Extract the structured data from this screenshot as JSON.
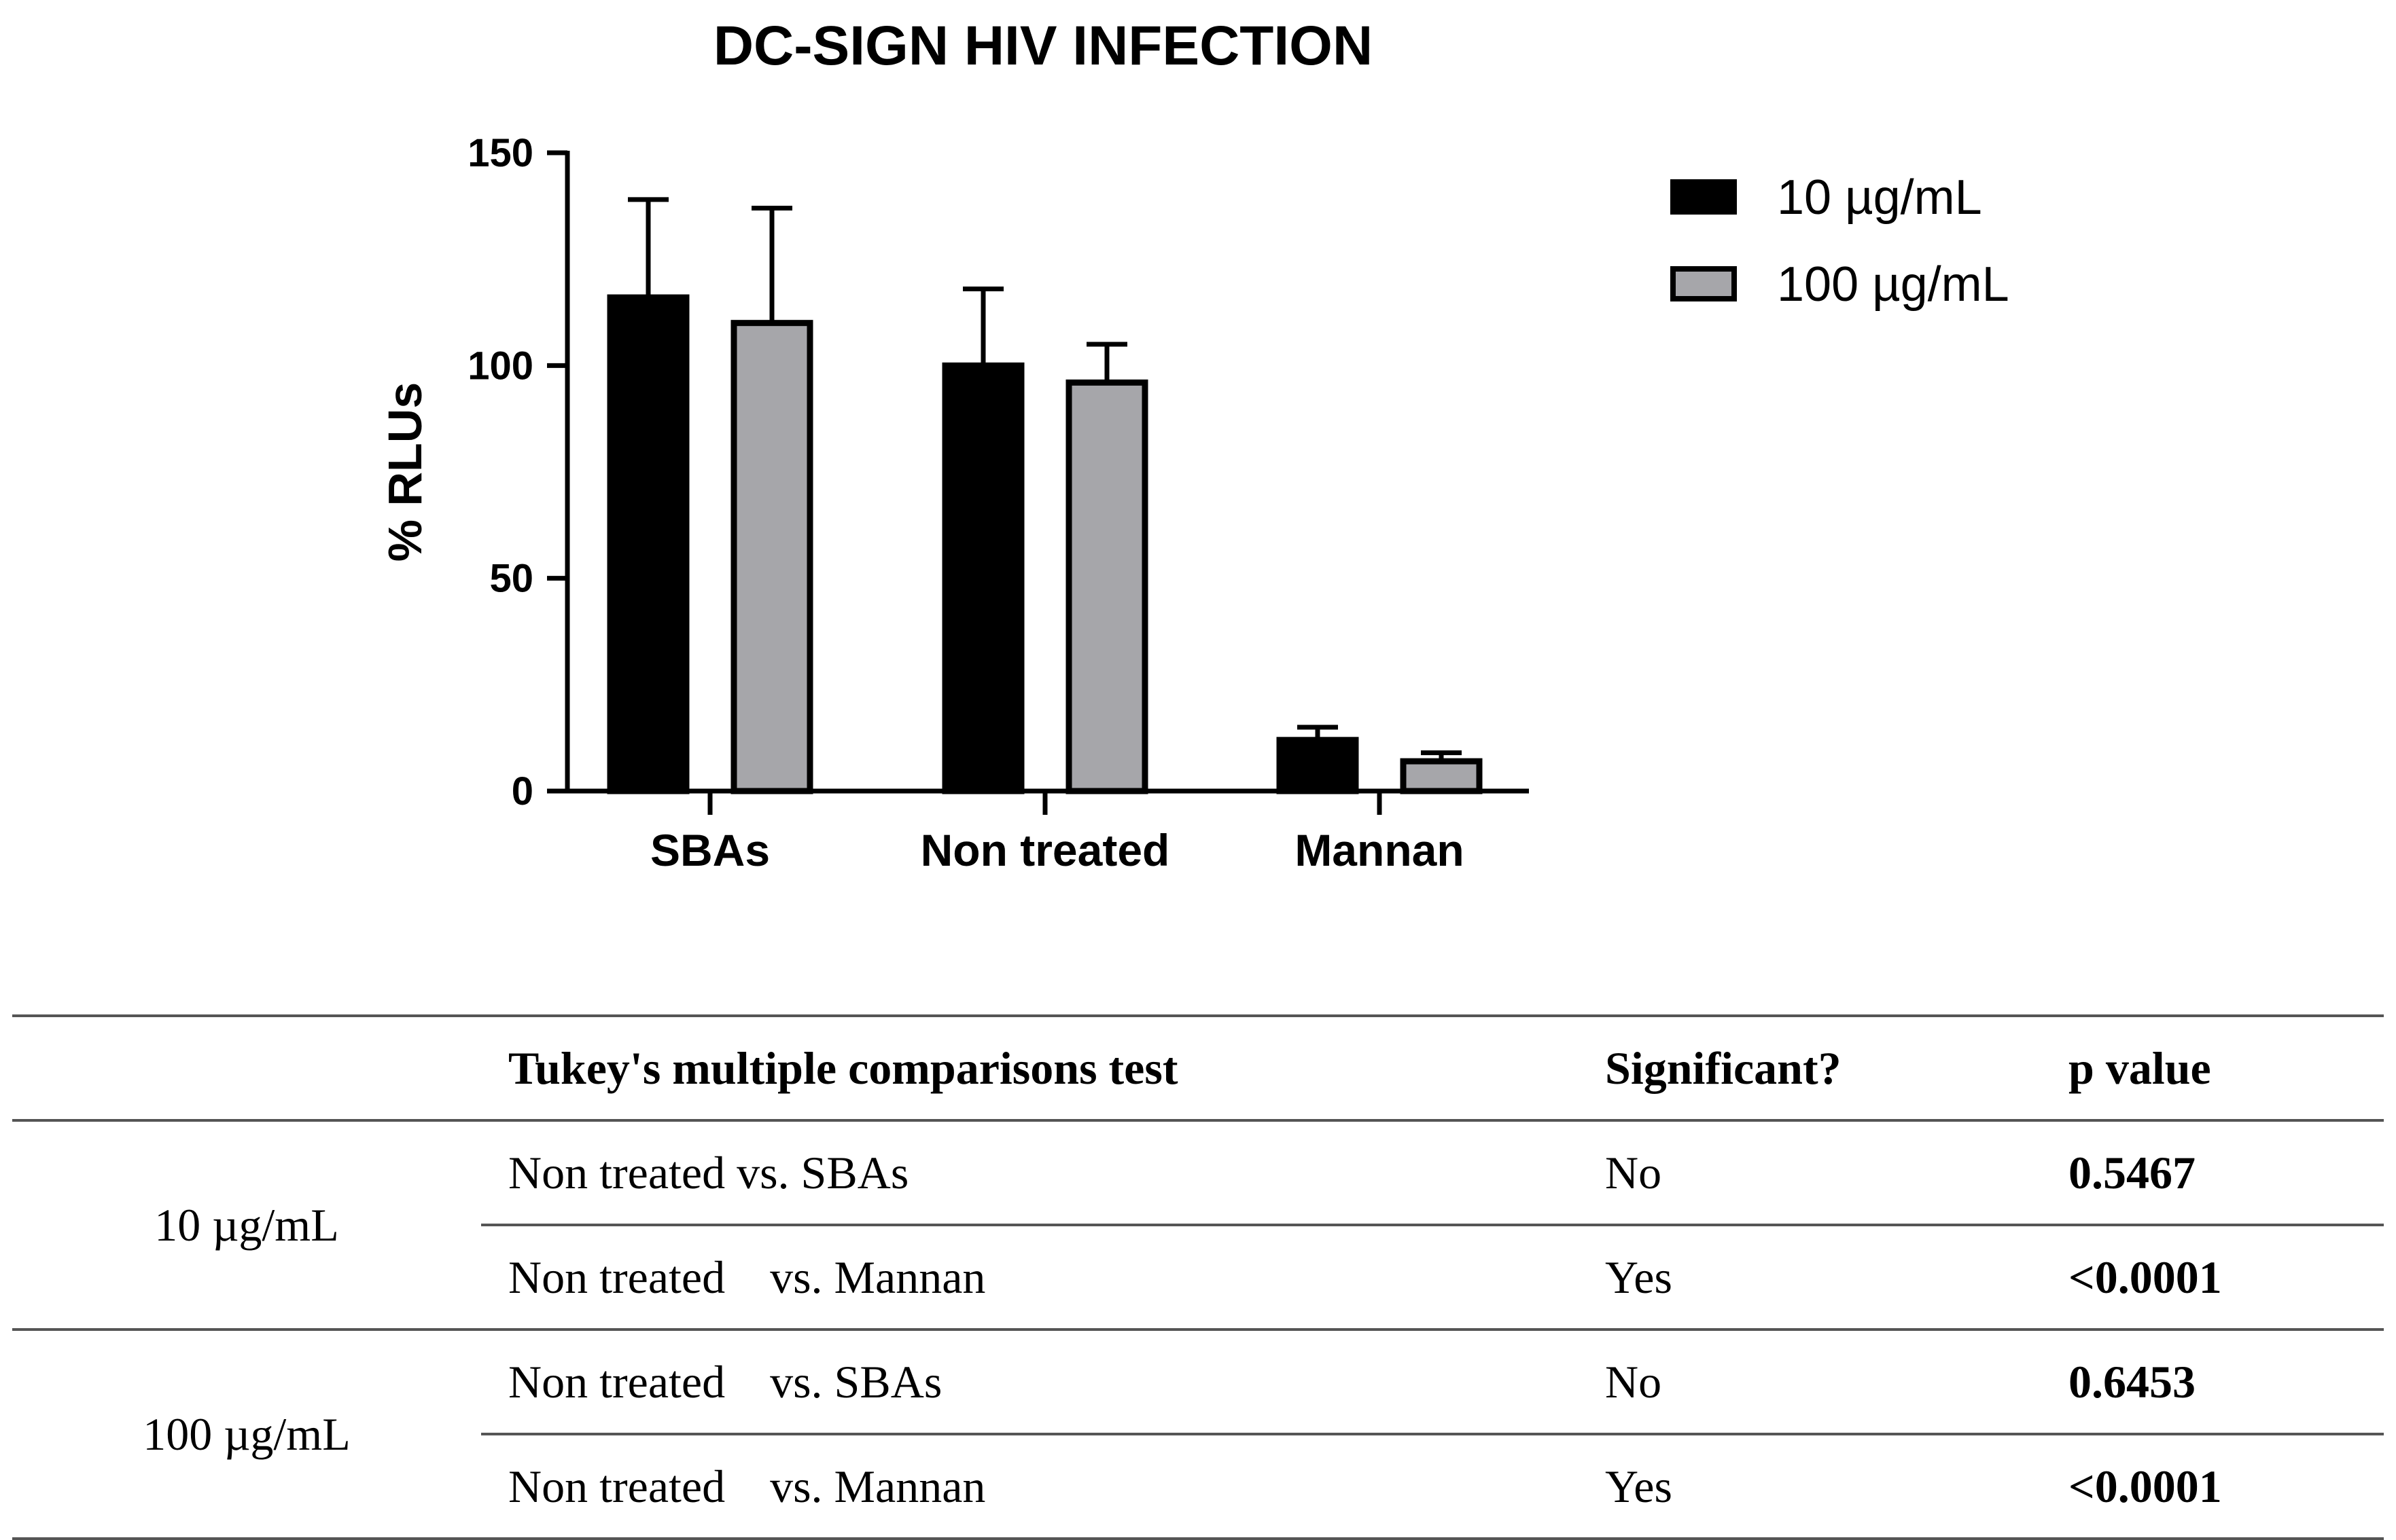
{
  "chart_data": {
    "type": "bar",
    "title": "DC-SIGN HIV INFECTION",
    "xlabel": "",
    "ylabel": "% RLUs",
    "ylim": [
      0,
      150
    ],
    "yticks": [
      0,
      50,
      100,
      150
    ],
    "categories": [
      "SBAs",
      "Non treated",
      "Mannan"
    ],
    "series": [
      {
        "name": "10 µg/mL",
        "color": "#000000",
        "values": [
          116,
          100,
          12
        ],
        "errors": [
          23,
          18,
          3
        ]
      },
      {
        "name": "100 µg/mL",
        "color": "#a6a6aa",
        "values": [
          110,
          96,
          7
        ],
        "errors": [
          27,
          9,
          2
        ]
      }
    ],
    "legend": "top-right",
    "grid": false
  },
  "table": {
    "headers": [
      "",
      "Tukey's multiple comparisons test",
      "Significant?",
      "p value"
    ],
    "groups": [
      {
        "label": "10 µg/mL",
        "rows": [
          {
            "a": "Non treated vs. SBAs",
            "b": "",
            "sig": "No",
            "p": "0.5467"
          },
          {
            "a": "Non treated",
            "b": "vs. Mannan",
            "sig": "Yes",
            "p": "<0.0001"
          }
        ]
      },
      {
        "label": "100 µg/mL",
        "rows": [
          {
            "a": "Non treated",
            "b": "vs. SBAs",
            "sig": "No",
            "p": "0.6453"
          },
          {
            "a": "Non treated",
            "b": "vs. Mannan",
            "sig": "Yes",
            "p": "<0.0001"
          }
        ]
      }
    ]
  }
}
